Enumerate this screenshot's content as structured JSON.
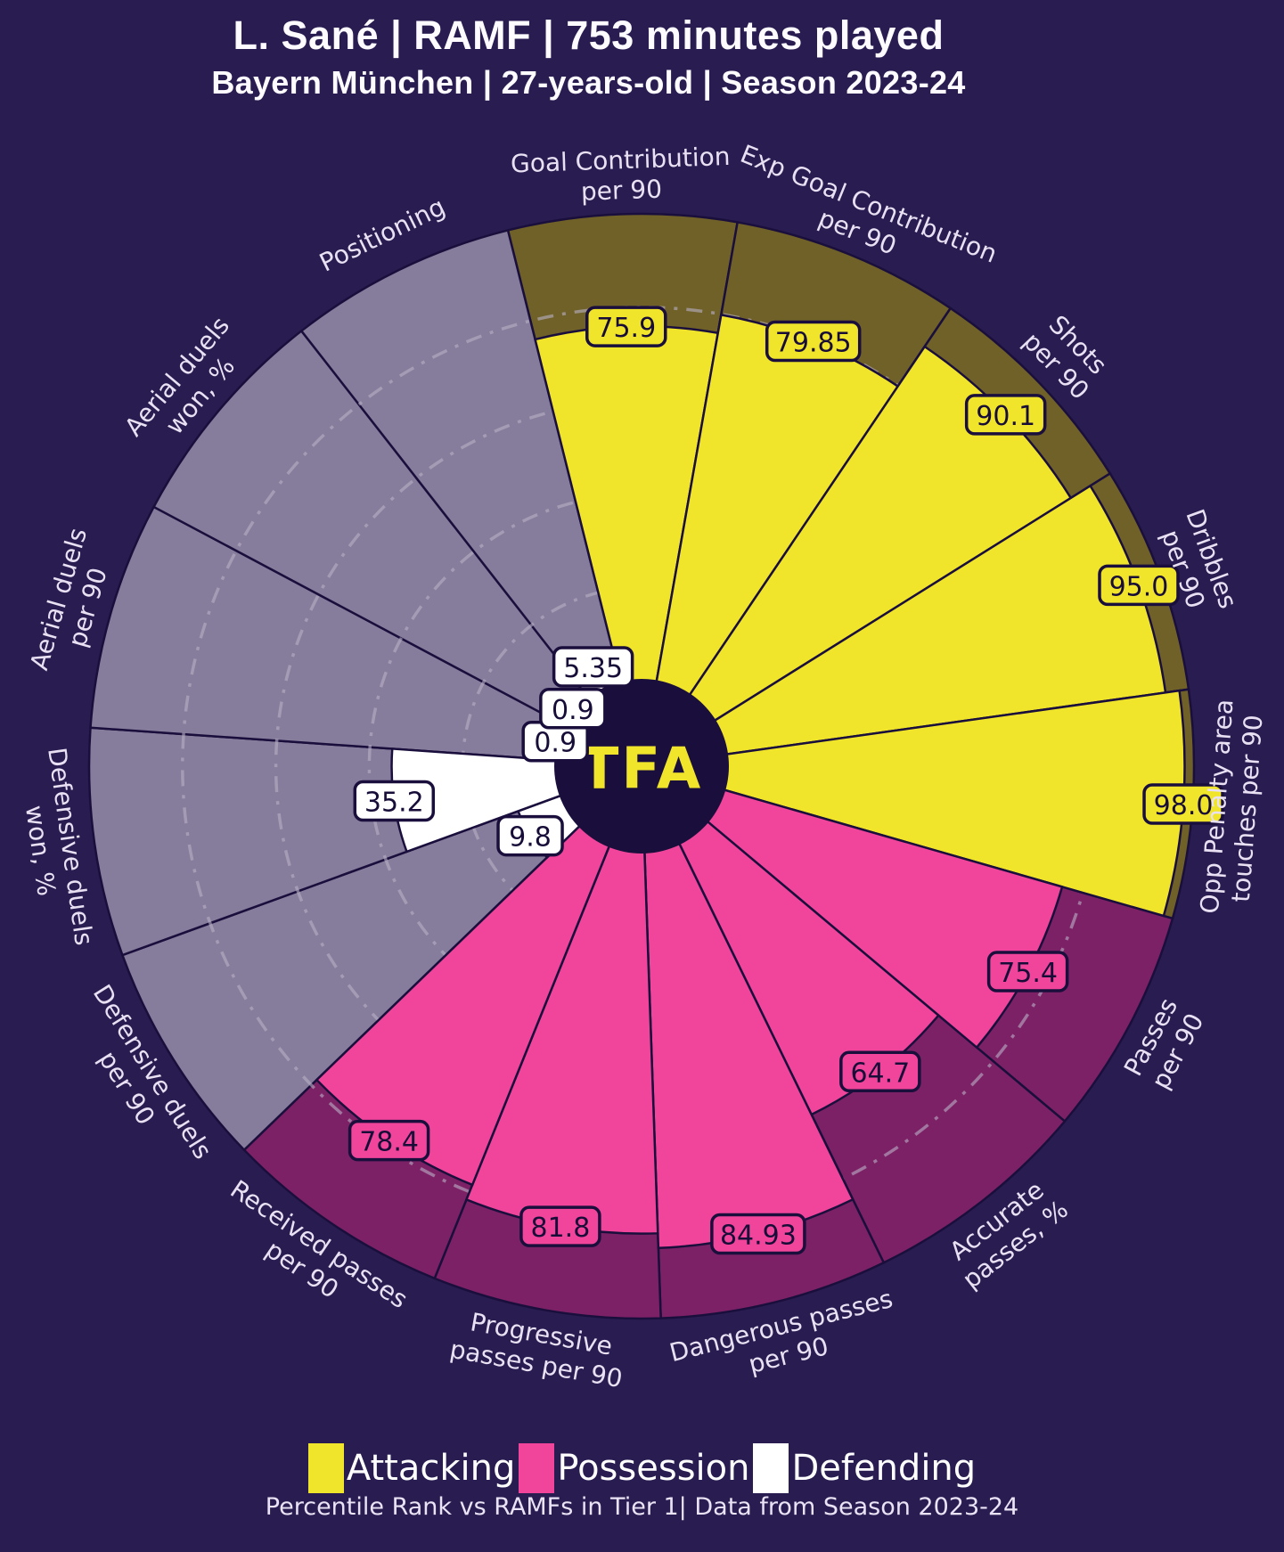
{
  "header": {
    "title": "L. Sané | RAMF | 753 minutes played",
    "subtitle": "Bayern München | 27-years-old | Season 2023-24"
  },
  "center_logo": "TFA",
  "legend": {
    "items": [
      {
        "label": "Attacking",
        "color": "#f1e52c"
      },
      {
        "label": "Possession",
        "color": "#f0459a"
      },
      {
        "label": "Defending",
        "color": "#ffffff"
      }
    ]
  },
  "footer": "Percentile Rank vs RAMFs in Tier 1| Data from Season 2023-24",
  "chart_data": {
    "type": "bar",
    "variant": "pizza-polar-percentile",
    "scale_min": 0,
    "scale_max": 100,
    "gridlines": [
      20,
      40,
      60,
      80
    ],
    "grid_color": "#b9b0c6",
    "background_color": "#281c50",
    "outline_color": "#1a0f3c",
    "groups": {
      "attacking": {
        "fill": "#f1e52c",
        "track": "#6f6128",
        "text": "#170d38"
      },
      "possession": {
        "fill": "#f0459a",
        "track": "#7d2166",
        "text": "#170d38"
      },
      "defending": {
        "fill": "#ffffff",
        "track": "#867c9b",
        "text": "#170d38"
      }
    },
    "slices": [
      {
        "label_lines": [
          "Goal Contribution",
          "per 90"
        ],
        "value": 75.9,
        "display": "75.9",
        "group": "attacking"
      },
      {
        "label_lines": [
          "Exp Goal Contribution",
          "per 90"
        ],
        "value": 79.85,
        "display": "79.85",
        "group": "attacking"
      },
      {
        "label_lines": [
          "Shots",
          "per 90"
        ],
        "value": 90.1,
        "display": "90.1",
        "group": "attacking"
      },
      {
        "label_lines": [
          "Dribbles",
          "per 90"
        ],
        "value": 95.0,
        "display": "95.0",
        "group": "attacking"
      },
      {
        "label_lines": [
          "Opp Penalty area",
          "touches per 90"
        ],
        "value": 98.0,
        "display": "98.0",
        "group": "attacking"
      },
      {
        "label_lines": [
          "Passes",
          "per 90"
        ],
        "value": 75.4,
        "display": "75.4",
        "group": "possession"
      },
      {
        "label_lines": [
          "Accurate",
          "passes, %"
        ],
        "value": 64.7,
        "display": "64.7",
        "group": "possession"
      },
      {
        "label_lines": [
          "Dangerous passes",
          "per 90"
        ],
        "value": 84.93,
        "display": "84.93",
        "group": "possession"
      },
      {
        "label_lines": [
          "Progressive",
          "passes per 90"
        ],
        "value": 81.8,
        "display": "81.8",
        "group": "possession"
      },
      {
        "label_lines": [
          "Received passes",
          "per 90"
        ],
        "value": 78.4,
        "display": "78.4",
        "group": "possession"
      },
      {
        "label_lines": [
          "Defensive duels",
          "per 90"
        ],
        "value": 9.8,
        "display": "9.8",
        "group": "defending"
      },
      {
        "label_lines": [
          "Defensive duels",
          "won, %"
        ],
        "value": 35.2,
        "display": "35.2",
        "group": "defending"
      },
      {
        "label_lines": [
          "Aerial duels",
          "per 90"
        ],
        "value": 0.9,
        "display": "0.9",
        "group": "defending"
      },
      {
        "label_lines": [
          "Aerial duels",
          "won, %"
        ],
        "value": 0.9,
        "display": "0.9",
        "group": "defending"
      },
      {
        "label_lines": [
          "Positioning"
        ],
        "value": 5.35,
        "display": "5.35",
        "group": "defending"
      }
    ]
  }
}
